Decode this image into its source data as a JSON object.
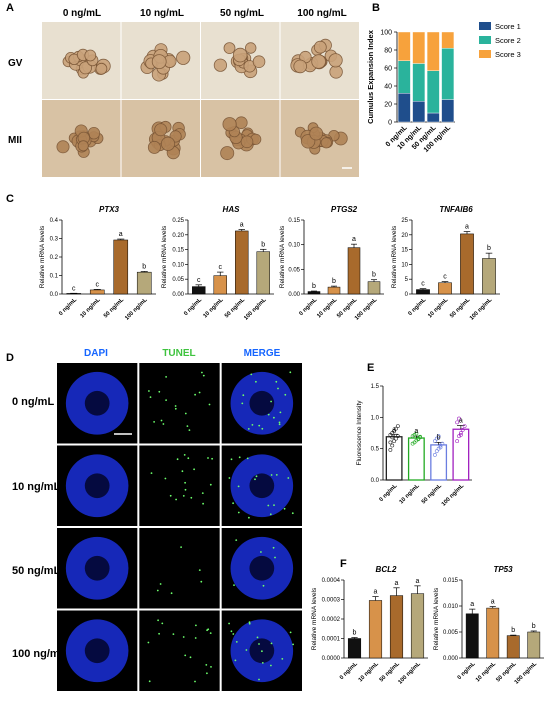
{
  "panels": {
    "A": "A",
    "B": "B",
    "C": "C",
    "D": "D",
    "E": "E",
    "F": "F"
  },
  "doses": [
    "0 ng/mL",
    "10 ng/mL",
    "50 ng/mL",
    "100 ng/mL"
  ],
  "panelA": {
    "rows": [
      "GV",
      "MII"
    ]
  },
  "panelD": {
    "channels": [
      "DAPI",
      "TUNEL",
      "MERGE"
    ],
    "channel_colors": [
      "#1565ff",
      "#3ec33e",
      "#1565ff"
    ]
  },
  "colors": {
    "c0": "#111111",
    "c10": "#d7924a",
    "c50": "#a86a2c",
    "c100": "#b5a87a",
    "score1": "#1f4e8c",
    "score2": "#2ab39c",
    "score3": "#f7a23c"
  },
  "chart_data": [
    {
      "id": "B",
      "type": "bar",
      "stacked": true,
      "categories": [
        "0 ng/mL",
        "10 ng/mL",
        "50 ng/mL",
        "100 ng/mL"
      ],
      "ylabel": "Cumulus Expansion Index",
      "ylim": [
        0,
        100
      ],
      "yticks": [
        0,
        20,
        40,
        60,
        80,
        100
      ],
      "series": [
        {
          "name": "Score 1",
          "values": [
            32,
            23,
            10,
            25
          ]
        },
        {
          "name": "Score 2",
          "values": [
            36,
            42,
            47,
            57
          ]
        },
        {
          "name": "Score 3",
          "values": [
            32,
            35,
            43,
            18
          ]
        }
      ]
    },
    {
      "id": "PTX3",
      "type": "bar",
      "title": "PTX3",
      "ylabel": "Relative mRNA levels",
      "ylim": [
        0,
        0.4
      ],
      "yticks": [
        "0.0",
        "0.1",
        "0.2",
        "0.3",
        "0.4"
      ],
      "categories": [
        "0 ng/mL",
        "10 ng/mL",
        "50 ng/mL",
        "100 ng/mL"
      ],
      "values": [
        0.003,
        0.022,
        0.292,
        0.118
      ],
      "errors": [
        0.001,
        0.003,
        0.005,
        0.004
      ],
      "letters": [
        "c",
        "c",
        "a",
        "b"
      ]
    },
    {
      "id": "HAS",
      "type": "bar",
      "title": "HAS",
      "ylabel": "Relative mRNA levels",
      "ylim": [
        0,
        0.25
      ],
      "yticks": [
        "0.00",
        "0.05",
        "0.10",
        "0.15",
        "0.20",
        "0.25"
      ],
      "categories": [
        "0 ng/mL",
        "10 ng/mL",
        "50 ng/mL",
        "100 ng/mL"
      ],
      "values": [
        0.025,
        0.062,
        0.213,
        0.143
      ],
      "errors": [
        0.006,
        0.012,
        0.005,
        0.008
      ],
      "letters": [
        "c",
        "c",
        "a",
        "b"
      ]
    },
    {
      "id": "PTGS2",
      "type": "bar",
      "title": "PTGS2",
      "ylabel": "Relative mRNA levels",
      "ylim": [
        0,
        0.15
      ],
      "yticks": [
        "0.00",
        "0.05",
        "0.10",
        "0.15"
      ],
      "categories": [
        "0 ng/mL",
        "10 ng/mL",
        "50 ng/mL",
        "100 ng/mL"
      ],
      "values": [
        0.005,
        0.014,
        0.094,
        0.025
      ],
      "errors": [
        0.001,
        0.002,
        0.007,
        0.004
      ],
      "letters": [
        "b",
        "b",
        "a",
        "b"
      ]
    },
    {
      "id": "TNFAIB6",
      "type": "bar",
      "title": "TNFAIB6",
      "ylabel": "Relative mRNA levels",
      "ylim": [
        0,
        25
      ],
      "yticks": [
        "0",
        "5",
        "10",
        "15",
        "20",
        "25"
      ],
      "categories": [
        "0 ng/mL",
        "10 ng/mL",
        "50 ng/mL",
        "100 ng/mL"
      ],
      "values": [
        1.5,
        3.8,
        20.3,
        12.0
      ],
      "errors": [
        0.3,
        0.4,
        0.8,
        1.8
      ],
      "letters": [
        "c",
        "c",
        "a",
        "b"
      ]
    },
    {
      "id": "E",
      "type": "bar",
      "ylabel": "Fluorescence Intensity",
      "ylim": [
        0,
        1.5
      ],
      "yticks": [
        "0.0",
        "0.5",
        "1.0",
        "1.5"
      ],
      "categories": [
        "0 ng/mL",
        "10 ng/mL",
        "50 ng/mL",
        "100 ng/mL"
      ],
      "values": [
        0.69,
        0.67,
        0.56,
        0.81
      ],
      "errors": [
        0.04,
        0.03,
        0.04,
        0.06
      ],
      "letters": [
        "a",
        "a",
        "b",
        "a"
      ],
      "points": [
        [
          0.48,
          0.55,
          0.62,
          0.66,
          0.7,
          0.72,
          0.75,
          0.78,
          0.82,
          0.86,
          0.6,
          0.68
        ],
        [
          0.58,
          0.6,
          0.63,
          0.66,
          0.68,
          0.7,
          0.72,
          0.74,
          0.65,
          0.69
        ],
        [
          0.4,
          0.46,
          0.5,
          0.55,
          0.58,
          0.62,
          0.66,
          0.7,
          0.52
        ],
        [
          0.62,
          0.7,
          0.75,
          0.8,
          0.86,
          0.92,
          0.98,
          0.72
        ]
      ]
    },
    {
      "id": "BCL2",
      "type": "bar",
      "title": "BCL2",
      "ylabel": "Relative mRNA levels",
      "ylim": [
        0,
        0.0004
      ],
      "yticks": [
        "0.0000",
        "0.0001",
        "0.0002",
        "0.0003",
        "0.0004"
      ],
      "categories": [
        "0 ng/mL",
        "10 ng/mL",
        "50 ng/mL",
        "100 ng/mL"
      ],
      "values": [
        0.0001,
        0.000295,
        0.00032,
        0.00033
      ],
      "errors": [
        5e-06,
        2e-05,
        4e-05,
        4e-05
      ],
      "letters": [
        "b",
        "a",
        "a",
        "a"
      ]
    },
    {
      "id": "TP53",
      "type": "bar",
      "title": "TP53",
      "ylabel": "Relative mRNA levels",
      "ylim": [
        0,
        0.015
      ],
      "yticks": [
        "0.000",
        "0.005",
        "0.010",
        "0.015"
      ],
      "categories": [
        "0 ng/mL",
        "10 ng/mL",
        "50 ng/mL",
        "100 ng/mL"
      ],
      "values": [
        0.0085,
        0.0096,
        0.0043,
        0.005
      ],
      "errors": [
        0.0009,
        0.0003,
        0.0001,
        0.0002
      ],
      "letters": [
        "a",
        "a",
        "b",
        "b"
      ]
    }
  ]
}
